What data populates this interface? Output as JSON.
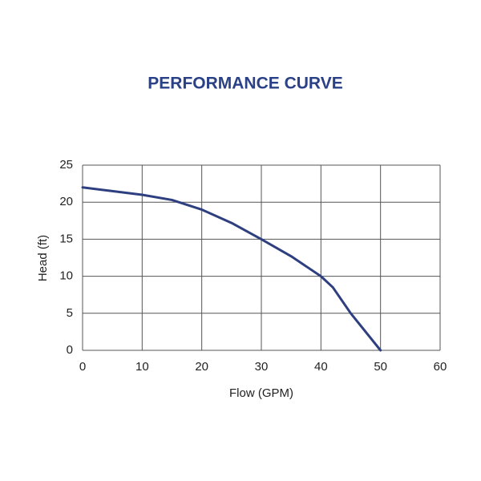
{
  "chart_data": {
    "type": "line",
    "title": "PERFORMANCE CURVE",
    "x_label": "Flow (GPM)",
    "y_label": "Head (ft)",
    "x": [
      0,
      5,
      10,
      15,
      20,
      25,
      30,
      35,
      40,
      42,
      45,
      50
    ],
    "series": [
      {
        "name": "Head",
        "color": "#2e3f80",
        "values": [
          22,
          21.5,
          21,
          20.3,
          19,
          17.2,
          15,
          12.7,
          10,
          8.5,
          5,
          0
        ]
      }
    ],
    "xlim": [
      0,
      60
    ],
    "xticks": [
      0,
      10,
      20,
      30,
      40,
      50,
      60
    ],
    "ylim": [
      0,
      25
    ],
    "yticks": [
      0,
      5,
      10,
      15,
      20,
      25
    ],
    "grid": true
  }
}
